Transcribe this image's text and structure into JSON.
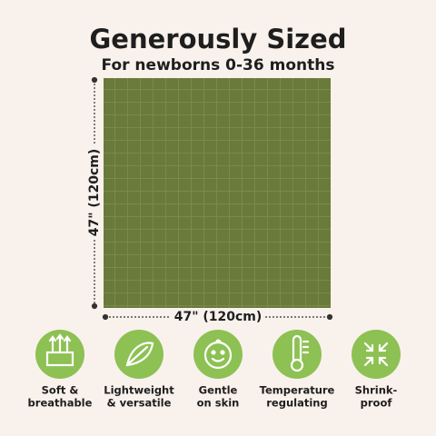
{
  "header": {
    "title": "Generously Sized",
    "subtitle": "For newborns 0-36 months"
  },
  "dimensions": {
    "height": "47\" (120cm)",
    "width": "47\" (120cm)"
  },
  "features": [
    {
      "lines": [
        "Soft &",
        "breathable"
      ]
    },
    {
      "lines": [
        "Lightweight",
        "& versatile"
      ]
    },
    {
      "lines": [
        "Gentle",
        "on skin"
      ]
    },
    {
      "lines": [
        "Temperature",
        "regulating"
      ]
    },
    {
      "lines": [
        "Shrink-",
        "proof"
      ]
    }
  ]
}
